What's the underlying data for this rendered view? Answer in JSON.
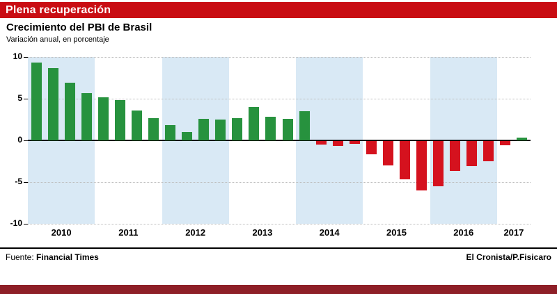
{
  "header": {
    "headline": "Plena recuperación"
  },
  "chart_data": {
    "type": "bar",
    "title": "Crecimiento del PBI de Brasil",
    "subtitle": "Variación anual, en porcentaje",
    "ylabel": "",
    "xlabel": "",
    "ylim": [
      -10,
      10
    ],
    "yticks": [
      10,
      5,
      0,
      -5,
      -10
    ],
    "grid": "dotted horizontal at ticks, heavy zero baseline",
    "legend": "none",
    "band_color": "#d9e9f5",
    "positive_color": "#27923e",
    "negative_color": "#d5121e",
    "years": [
      {
        "label": "2010",
        "shaded": true,
        "quarters": 4
      },
      {
        "label": "2011",
        "shaded": false,
        "quarters": 4
      },
      {
        "label": "2012",
        "shaded": true,
        "quarters": 4
      },
      {
        "label": "2013",
        "shaded": false,
        "quarters": 4
      },
      {
        "label": "2014",
        "shaded": true,
        "quarters": 4
      },
      {
        "label": "2015",
        "shaded": false,
        "quarters": 4
      },
      {
        "label": "2016",
        "shaded": true,
        "quarters": 4
      },
      {
        "label": "2017",
        "shaded": false,
        "quarters": 2
      }
    ],
    "values": [
      9.3,
      8.7,
      6.9,
      5.7,
      5.2,
      4.8,
      3.6,
      2.7,
      1.8,
      1.0,
      2.6,
      2.5,
      2.7,
      4.0,
      2.8,
      2.6,
      3.5,
      -0.4,
      -0.6,
      -0.3,
      -1.6,
      -2.9,
      -4.6,
      -5.9,
      -5.4,
      -3.6,
      -3.0,
      -2.4,
      -0.5,
      0.3
    ]
  },
  "footer": {
    "source_label": "Fuente:",
    "source": "Financial Times",
    "credit": "El Cronista/P.Fisicaro"
  }
}
